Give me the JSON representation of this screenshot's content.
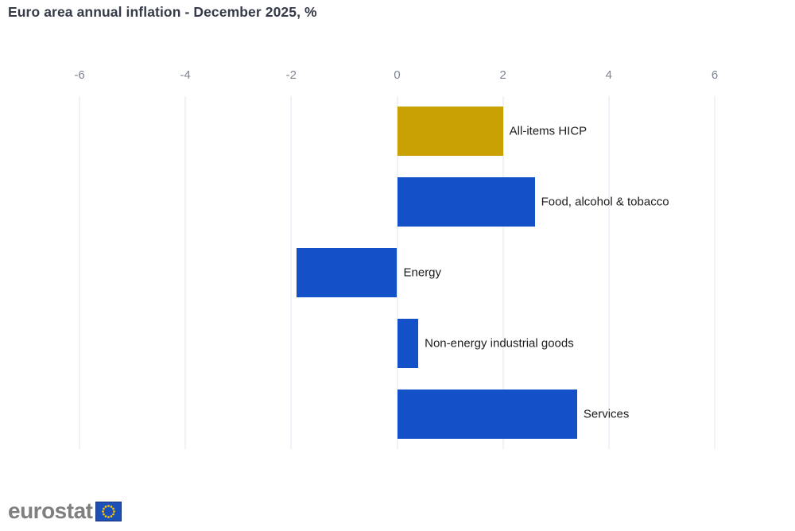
{
  "title": "Euro area annual inflation - December 2025, %",
  "footer": {
    "logo_text": "eurostat",
    "flag_icon": "eu-flag"
  },
  "colors": {
    "accent_gold": "#c9a102",
    "accent_blue": "#1451c9",
    "gridline": "#dde4f3",
    "tick_label_gray": "#7d8493",
    "bar_label_black": "#1d1d1b",
    "title_text": "#353b48",
    "logo_gray": "#7f7f7f",
    "flag_blue": "#1d4fb8",
    "flag_star_yellow": "#f2c500"
  },
  "chart_data": {
    "type": "bar",
    "orientation": "horizontal",
    "title": "Euro area annual inflation - December 2025, %",
    "categories": [
      "All-items HICP",
      "Food, alcohol & tobacco",
      "Energy",
      "Non-energy industrial goods",
      "Services"
    ],
    "values": [
      2.0,
      2.6,
      -1.9,
      0.4,
      3.4
    ],
    "bar_colors": [
      "#c9a102",
      "#1451c9",
      "#1451c9",
      "#1451c9",
      "#1451c9"
    ],
    "xlim": [
      -6,
      6
    ],
    "x_ticks": [
      -6,
      -4,
      -2,
      0,
      2,
      4,
      6
    ],
    "xlabel": "",
    "ylabel": "",
    "grid": true,
    "gridline_orientation": "vertical",
    "axis_position": "top",
    "legend": false,
    "label_position": "outside-end"
  }
}
